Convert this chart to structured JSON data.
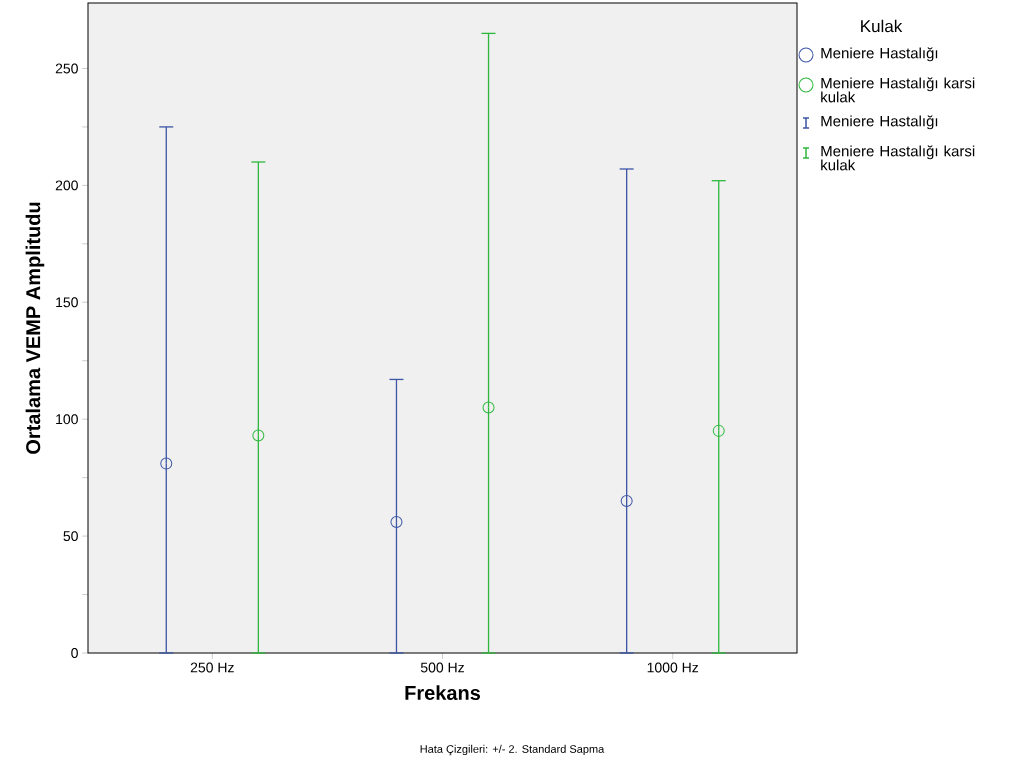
{
  "chart_data": {
    "type": "scatter",
    "xlabel": "Frekans",
    "ylabel": "Ortalama VEMP Amplitudu",
    "legend_title": "Kulak",
    "annotations": [
      "Hata Çizgileri: +/- 2. Standard Sapma"
    ],
    "categories": [
      "250 Hz",
      "500 Hz",
      "1000 Hz"
    ],
    "series": [
      {
        "name": "Meniere Hastalığı",
        "color": "#3c55a5",
        "values": [
          81,
          56,
          65
        ],
        "errors": [
          [
            0,
            225
          ],
          [
            0,
            117
          ],
          [
            0,
            207
          ]
        ]
      },
      {
        "name": "Meniere Hastalığı karsi kulak",
        "color": "#2db83d",
        "values": [
          93,
          105,
          95
        ],
        "errors": [
          [
            0,
            210
          ],
          [
            0,
            265
          ],
          [
            0,
            202
          ]
        ]
      }
    ],
    "ylim": [
      0,
      278
    ],
    "yticks": [
      0,
      50,
      100,
      150,
      200,
      250
    ],
    "marker": "circle",
    "grid": false,
    "legend": "right"
  }
}
